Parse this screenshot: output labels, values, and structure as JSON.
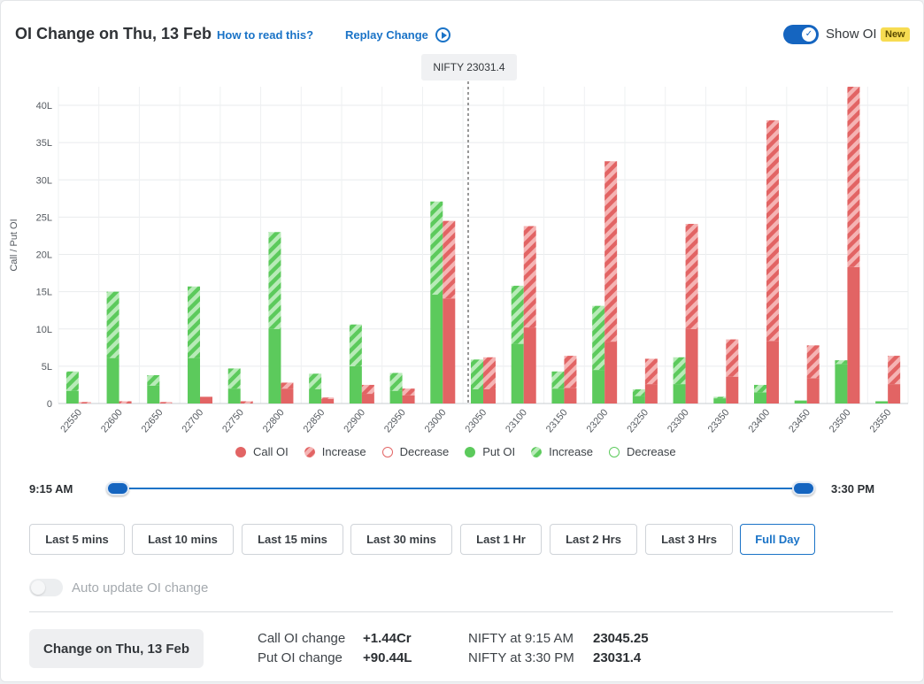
{
  "header": {
    "title": "OI Change on Thu, 13 Feb",
    "how_to_read": "How to read this?",
    "replay": "Replay Change",
    "show_oi_label": "Show OI",
    "new_badge": "New",
    "show_oi_enabled": true
  },
  "colors": {
    "call": "#e26464",
    "call_light": "#f4a5a5",
    "put": "#5cca5c",
    "put_light": "#a8e3a8",
    "accent": "#1a73c7"
  },
  "chart_data": {
    "type": "bar",
    "ylabel": "Call / Put OI",
    "ylim": [
      0,
      42.5
    ],
    "yticks": [
      0,
      5,
      10,
      15,
      20,
      25,
      30,
      35,
      40
    ],
    "ytick_labels": [
      "0",
      "5L",
      "10L",
      "15L",
      "20L",
      "25L",
      "30L",
      "35L",
      "40L"
    ],
    "grid": true,
    "spot_marker": {
      "strike": 23031.4,
      "label": "NIFTY 23031.4"
    },
    "categories": [
      "22550",
      "22600",
      "22650",
      "22700",
      "22750",
      "22800",
      "22850",
      "22900",
      "22950",
      "23000",
      "23050",
      "23100",
      "23150",
      "23200",
      "23250",
      "23300",
      "23350",
      "23400",
      "23450",
      "23500",
      "23550"
    ],
    "series": [
      {
        "name": "Call OI",
        "values": [
          0,
          0,
          0,
          0.9,
          0,
          2.0,
          0.6,
          1.3,
          1.1,
          14.1,
          1.9,
          10.2,
          2.1,
          8.3,
          2.6,
          10.0,
          3.6,
          8.4,
          3.4,
          18.3,
          2.6
        ]
      },
      {
        "name": "Increase",
        "values": [
          0.2,
          0.3,
          0.2,
          0,
          0.3,
          0.8,
          0.2,
          1.2,
          0.9,
          10.4,
          4.3,
          13.6,
          4.3,
          24.2,
          3.4,
          14.1,
          5.0,
          29.6,
          4.4,
          24.2,
          3.8
        ]
      },
      {
        "name": "Decrease",
        "values": [
          0,
          0,
          0,
          0,
          0,
          0,
          0,
          0,
          0,
          0,
          0,
          0,
          0,
          0,
          0,
          0,
          0,
          0,
          0,
          0,
          0
        ]
      },
      {
        "name": "Put OI",
        "values": [
          1.7,
          6.1,
          2.4,
          6.1,
          2.0,
          10.0,
          1.9,
          5.0,
          1.7,
          14.6,
          1.9,
          8.0,
          2.0,
          4.5,
          1.0,
          2.6,
          0.7,
          1.5,
          0.4,
          5.3,
          0.3
        ]
      },
      {
        "name": "Increase",
        "values": [
          2.6,
          8.9,
          1.4,
          9.6,
          2.7,
          13.0,
          2.1,
          5.6,
          2.4,
          12.5,
          4.0,
          7.8,
          2.3,
          8.6,
          0.9,
          3.6,
          0.2,
          1.0,
          0,
          0.5,
          0
        ]
      },
      {
        "name": "Decrease",
        "values": [
          0,
          0,
          0,
          0,
          0,
          0,
          0,
          0,
          0,
          0,
          0,
          0,
          0,
          0,
          0,
          0,
          0,
          0,
          0,
          0,
          0
        ]
      }
    ]
  },
  "legend": [
    {
      "label": "Call OI",
      "style": "call-solid"
    },
    {
      "label": "Increase",
      "style": "call-hatch"
    },
    {
      "label": "Decrease",
      "style": "call-outline"
    },
    {
      "label": "Put OI",
      "style": "put-solid"
    },
    {
      "label": "Increase",
      "style": "put-hatch"
    },
    {
      "label": "Decrease",
      "style": "put-outline"
    }
  ],
  "time_range": {
    "start": "9:15 AM",
    "end": "3:30 PM",
    "start_fraction": 0,
    "end_fraction": 1
  },
  "buttons": [
    "Last 5 mins",
    "Last 10 mins",
    "Last 15 mins",
    "Last 30 mins",
    "Last 1 Hr",
    "Last 2 Hrs",
    "Last 3 Hrs",
    "Full Day"
  ],
  "active_button": "Full Day",
  "auto_update": {
    "label": "Auto update OI change",
    "enabled": false
  },
  "footer": {
    "change_button": "Change on Thu, 13 Feb",
    "call_oi_change_label": "Call OI change",
    "call_oi_change_value": "+1.44Cr",
    "put_oi_change_label": "Put OI change",
    "put_oi_change_value": "+90.44L",
    "nifty_start_label": "NIFTY at 9:15 AM",
    "nifty_start_value": "23045.25",
    "nifty_end_label": "NIFTY at 3:30 PM",
    "nifty_end_value": "23031.4"
  }
}
